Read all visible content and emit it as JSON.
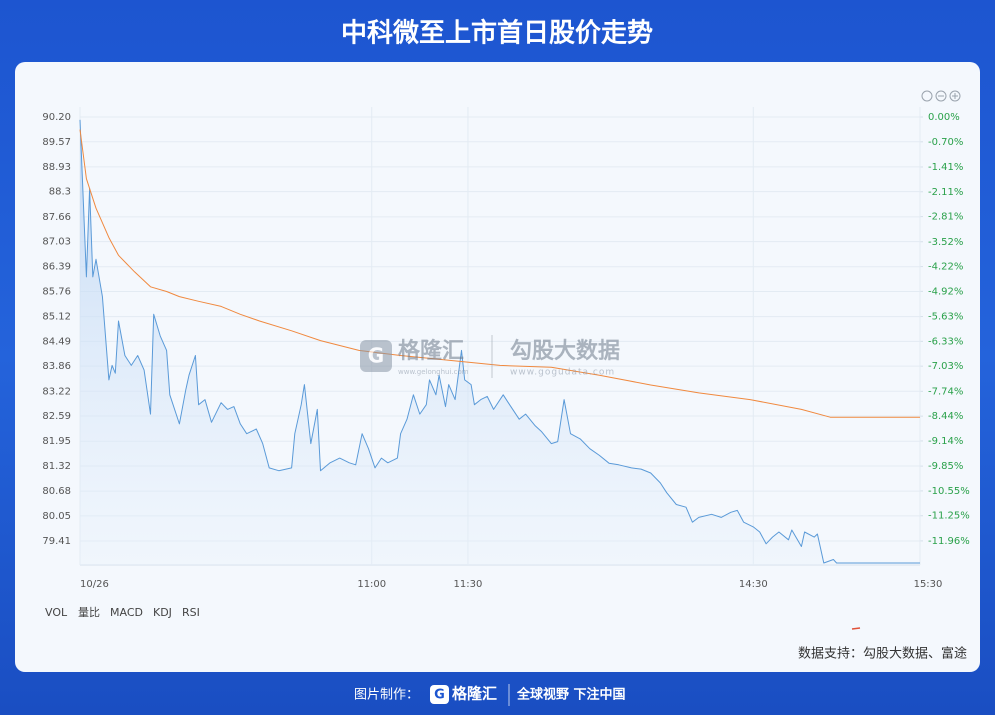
{
  "chart_data": {
    "type": "line",
    "title": "中科微至上市首日股价走势",
    "xlim": [
      0,
      262
    ],
    "xticks": [
      {
        "value": 0,
        "label": "10/26"
      },
      {
        "value": 91,
        "label": "11:00"
      },
      {
        "value": 121,
        "label": "11:30"
      },
      {
        "value": 210,
        "label": "14:30"
      },
      {
        "value": 262,
        "label": "15:30"
      }
    ],
    "ylim": [
      78.8,
      90.2
    ],
    "yticks": [
      {
        "value": 90.2,
        "label": "90.20"
      },
      89.57,
      88.93,
      88.3,
      87.66,
      87.03,
      86.39,
      85.76,
      85.12,
      84.49,
      83.86,
      83.22,
      82.59,
      81.95,
      81.32,
      80.68,
      80.05,
      79.41
    ],
    "y2lim": [
      -12.64,
      0
    ],
    "y2ticks": [
      {
        "value": 0,
        "label": "0.00%"
      },
      {
        "value": -0.7,
        "label": "-0.70%"
      },
      {
        "value": -1.41,
        "label": "-1.41%"
      },
      {
        "value": -2.11,
        "label": "-2.11%"
      },
      {
        "value": -2.81,
        "label": "-2.81%"
      },
      {
        "value": -3.52,
        "label": "-3.52%"
      },
      {
        "value": -4.22,
        "label": "-4.22%"
      },
      {
        "value": -4.92,
        "label": "-4.92%"
      },
      {
        "value": -5.63,
        "label": "-5.63%"
      },
      {
        "value": -6.33,
        "label": "-6.33%"
      },
      {
        "value": -7.03,
        "label": "-7.03%"
      },
      {
        "value": -7.74,
        "label": "-7.74%"
      },
      {
        "value": -8.44,
        "label": "-8.44%"
      },
      {
        "value": -9.14,
        "label": "-9.14%"
      },
      {
        "value": -9.85,
        "label": "-9.85%"
      },
      {
        "value": -10.55,
        "label": "-10.55%"
      },
      {
        "value": -11.25,
        "label": "-11.25%"
      },
      {
        "value": -11.96,
        "label": "-11.96%"
      }
    ],
    "grid": true,
    "series": [
      {
        "color": "#5a9ad8",
        "area": true,
        "x": [
          0,
          1,
          2,
          3,
          4,
          5,
          7,
          9,
          10,
          11,
          12,
          14,
          16,
          18,
          20,
          22,
          23,
          25,
          27,
          28,
          31,
          33,
          34,
          36,
          37,
          39,
          41,
          44,
          46,
          48,
          50,
          52,
          55,
          57,
          59,
          62,
          66,
          67,
          69,
          70,
          72,
          74,
          75,
          78,
          81,
          84,
          86,
          88,
          90,
          92,
          94,
          96,
          99,
          100,
          102,
          104,
          106,
          108,
          109,
          111,
          112,
          114,
          115,
          117,
          119,
          120,
          122,
          123,
          125,
          127,
          129,
          132,
          134,
          137,
          139,
          142,
          144,
          147,
          149,
          151,
          153,
          156,
          159,
          162,
          165,
          168,
          172,
          175,
          178,
          181,
          183,
          186,
          189,
          191,
          193,
          197,
          200,
          203,
          205,
          207,
          210,
          212,
          214,
          216,
          218,
          221,
          222,
          225,
          226,
          229,
          230,
          232,
          235,
          236,
          262
        ],
        "values": [
          90.13,
          88.13,
          86.13,
          88.38,
          86.13,
          86.58,
          85.63,
          83.51,
          83.88,
          83.68,
          85.01,
          84.13,
          83.88,
          84.13,
          83.76,
          82.64,
          85.18,
          84.63,
          84.26,
          83.13,
          82.39,
          83.26,
          83.63,
          84.13,
          82.88,
          83.01,
          82.43,
          82.93,
          82.76,
          82.83,
          82.39,
          82.14,
          82.26,
          81.89,
          81.27,
          81.2,
          81.27,
          82.14,
          82.88,
          83.39,
          81.89,
          82.76,
          81.2,
          81.4,
          81.52,
          81.4,
          81.35,
          82.14,
          81.76,
          81.27,
          81.52,
          81.4,
          81.52,
          82.14,
          82.51,
          83.13,
          82.64,
          82.88,
          83.51,
          83.13,
          83.63,
          82.83,
          83.39,
          83.01,
          84.26,
          83.51,
          83.39,
          82.88,
          83.01,
          83.09,
          82.76,
          83.13,
          82.88,
          82.51,
          82.64,
          82.34,
          82.19,
          81.89,
          81.94,
          83.01,
          82.14,
          82.01,
          81.76,
          81.59,
          81.39,
          81.35,
          81.27,
          81.24,
          81.14,
          80.89,
          80.64,
          80.34,
          80.27,
          79.89,
          80.01,
          80.09,
          80.01,
          80.14,
          80.19,
          79.89,
          79.77,
          79.64,
          79.34,
          79.51,
          79.64,
          79.44,
          79.69,
          79.27,
          79.64,
          79.51,
          79.59,
          78.85,
          78.94,
          78.85,
          78.85
        ]
      },
      {
        "color": "#f0893f",
        "x": [
          0,
          2,
          5,
          9,
          12,
          17,
          22,
          27,
          31,
          37,
          44,
          50,
          56,
          66,
          75,
          87,
          100,
          115,
          131,
          147,
          162,
          178,
          193,
          209,
          225,
          234,
          262
        ],
        "values": [
          89.88,
          88.63,
          87.88,
          87.13,
          86.68,
          86.26,
          85.88,
          85.76,
          85.63,
          85.51,
          85.38,
          85.18,
          85.01,
          84.76,
          84.51,
          84.26,
          84.13,
          84.01,
          83.88,
          83.83,
          83.63,
          83.38,
          83.18,
          83.01,
          82.76,
          82.56,
          82.56
        ]
      }
    ]
  },
  "tabs": [
    "VOL",
    "量比",
    "MACD",
    "KDJ",
    "RSI"
  ],
  "watermark": {
    "brand": "格隆汇",
    "brand_url": "www.gelonghui.com",
    "partner": "勾股大数据",
    "partner_url": "www.gogudata.com"
  },
  "source": "数据支持：勾股大数据、富途",
  "footer": {
    "made_by": "图片制作：",
    "brand": "格隆汇",
    "slogan": "全球视野 下注中国"
  }
}
